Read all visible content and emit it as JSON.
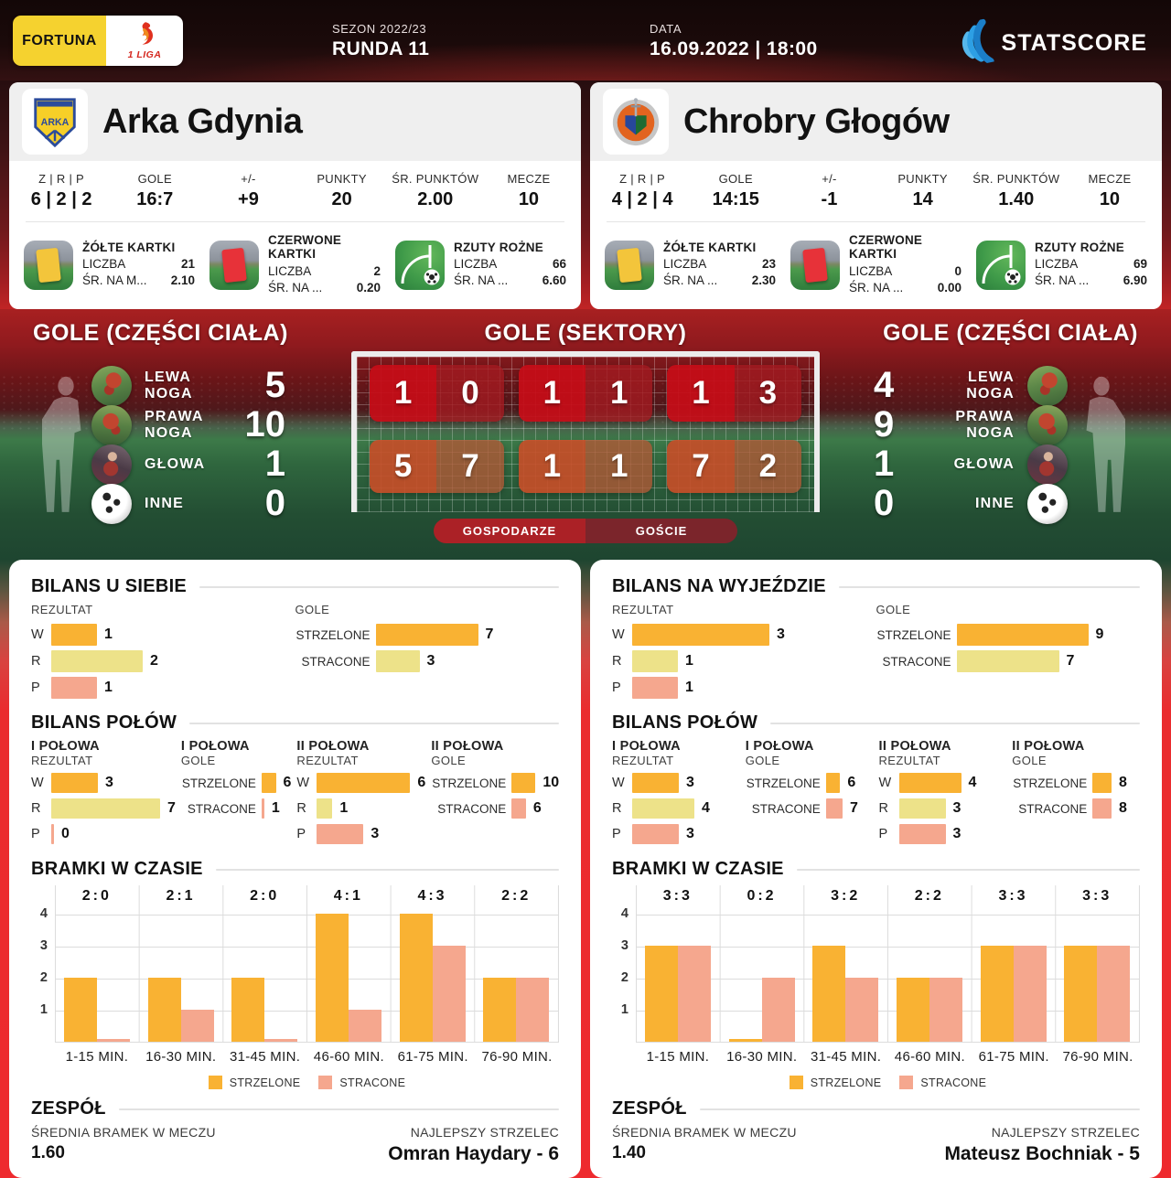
{
  "header": {
    "fortuna_label": "FORTUNA",
    "liga_label": "1 LIGA",
    "season_label": "SEZON 2022/23",
    "round": "RUNDA 11",
    "date_label": "DATA",
    "datetime": "16.09.2022 | 18:00",
    "brand": "STATSCORE"
  },
  "teams": [
    {
      "name": "Arka Gdynia",
      "stats": [
        {
          "label": "Z | R | P",
          "value": "6 | 2 | 2"
        },
        {
          "label": "GOLE",
          "value": "16:7"
        },
        {
          "label": "+/-",
          "value": "+9"
        },
        {
          "label": "PUNKTY",
          "value": "20"
        },
        {
          "label": "ŚR. PUNKTÓW",
          "value": "2.00"
        },
        {
          "label": "MECZE",
          "value": "10"
        }
      ],
      "cards": [
        {
          "icon": "yellow-card-icon",
          "title": "ŻÓŁTE KARTKI",
          "rows": [
            {
              "label": "LICZBA",
              "value": "21"
            },
            {
              "label": "ŚR. NA M...",
              "value": "2.10"
            }
          ]
        },
        {
          "icon": "red-card-icon",
          "title": "CZERWONE KARTKI",
          "rows": [
            {
              "label": "LICZBA",
              "value": "2"
            },
            {
              "label": "ŚR. NA ...",
              "value": "0.20"
            }
          ]
        },
        {
          "icon": "corner-icon",
          "title": "RZUTY ROŻNE",
          "rows": [
            {
              "label": "LICZBA",
              "value": "66"
            },
            {
              "label": "ŚR. NA ...",
              "value": "6.60"
            }
          ]
        }
      ]
    },
    {
      "name": "Chrobry Głogów",
      "stats": [
        {
          "label": "Z | R | P",
          "value": "4 | 2 | 4"
        },
        {
          "label": "GOLE",
          "value": "14:15"
        },
        {
          "label": "+/-",
          "value": "-1"
        },
        {
          "label": "PUNKTY",
          "value": "14"
        },
        {
          "label": "ŚR. PUNKTÓW",
          "value": "1.40"
        },
        {
          "label": "MECZE",
          "value": "10"
        }
      ],
      "cards": [
        {
          "icon": "yellow-card-icon",
          "title": "ŻÓŁTE KARTKI",
          "rows": [
            {
              "label": "LICZBA",
              "value": "23"
            },
            {
              "label": "ŚR. NA ...",
              "value": "2.30"
            }
          ]
        },
        {
          "icon": "red-card-icon",
          "title": "CZERWONE KARTKI",
          "rows": [
            {
              "label": "LICZBA",
              "value": "0"
            },
            {
              "label": "ŚR. NA ...",
              "value": "0.00"
            }
          ]
        },
        {
          "icon": "corner-icon",
          "title": "RZUTY ROŻNE",
          "rows": [
            {
              "label": "LICZBA",
              "value": "69"
            },
            {
              "label": "ŚR. NA ...",
              "value": "6.90"
            }
          ]
        }
      ]
    }
  ],
  "body_parts": {
    "title_left": "GOLE (CZĘŚCI CIAŁA)",
    "title_right": "GOLE (CZĘŚCI CIAŁA)",
    "left": [
      {
        "label": "LEWA NOGA",
        "value": 5,
        "icon": "left-leg-icon"
      },
      {
        "label": "PRAWA NOGA",
        "value": 10,
        "icon": "right-leg-icon"
      },
      {
        "label": "GŁOWA",
        "value": 1,
        "icon": "head-icon"
      },
      {
        "label": "INNE",
        "value": 0,
        "icon": "ball-icon"
      }
    ],
    "right": [
      {
        "label": "LEWA NOGA",
        "value": 4,
        "icon": "left-leg-icon"
      },
      {
        "label": "PRAWA NOGA",
        "value": 9,
        "icon": "right-leg-icon"
      },
      {
        "label": "GŁOWA",
        "value": 1,
        "icon": "head-icon"
      },
      {
        "label": "INNE",
        "value": 0,
        "icon": "ball-icon"
      }
    ]
  },
  "sectors": {
    "title": "GOLE (SEKTORY)",
    "top": [
      {
        "home": 1,
        "away": 0
      },
      {
        "home": 1,
        "away": 1
      },
      {
        "home": 1,
        "away": 3
      }
    ],
    "bottom": [
      {
        "home": 5,
        "away": 7
      },
      {
        "home": 1,
        "away": 1
      },
      {
        "home": 7,
        "away": 2
      }
    ],
    "legend_home": "GOSPODARZE",
    "legend_away": "GOŚCIE"
  },
  "balance": {
    "left": {
      "title": "BILANS U SIEBIE",
      "rezultat_label": "REZULTAT",
      "gole_label": "GOLE",
      "rezultat": [
        {
          "label": "W",
          "value": 1,
          "color": "orange"
        },
        {
          "label": "R",
          "value": 2,
          "color": "yellow"
        },
        {
          "label": "P",
          "value": 1,
          "color": "salmon"
        }
      ],
      "gole": [
        {
          "label": "STRZELONE",
          "value": 7,
          "color": "orange"
        },
        {
          "label": "STRACONE",
          "value": 3,
          "color": "yellow"
        }
      ],
      "halves_title": "BILANS POŁÓW",
      "halves": [
        {
          "title": "I POŁOWA",
          "sub": "REZULTAT",
          "rows": [
            {
              "label": "W",
              "value": 3,
              "color": "orange"
            },
            {
              "label": "R",
              "value": 7,
              "color": "yellow"
            },
            {
              "label": "P",
              "value": 0,
              "color": "salmon"
            }
          ]
        },
        {
          "title": "I POŁOWA",
          "sub": "GOLE",
          "rows": [
            {
              "label": "STRZELONE",
              "value": 6,
              "color": "orange"
            },
            {
              "label": "STRACONE",
              "value": 1,
              "color": "salmon"
            }
          ]
        },
        {
          "title": "II POŁOWA",
          "sub": "REZULTAT",
          "rows": [
            {
              "label": "W",
              "value": 6,
              "color": "orange"
            },
            {
              "label": "R",
              "value": 1,
              "color": "yellow"
            },
            {
              "label": "P",
              "value": 3,
              "color": "salmon"
            }
          ]
        },
        {
          "title": "II POŁOWA",
          "sub": "GOLE",
          "rows": [
            {
              "label": "STRZELONE",
              "value": 10,
              "color": "orange"
            },
            {
              "label": "STRACONE",
              "value": 6,
              "color": "salmon"
            }
          ]
        }
      ]
    },
    "right": {
      "title": "BILANS NA WYJEŹDZIE",
      "rezultat_label": "REZULTAT",
      "gole_label": "GOLE",
      "rezultat": [
        {
          "label": "W",
          "value": 3,
          "color": "orange"
        },
        {
          "label": "R",
          "value": 1,
          "color": "yellow"
        },
        {
          "label": "P",
          "value": 1,
          "color": "salmon"
        }
      ],
      "gole": [
        {
          "label": "STRZELONE",
          "value": 9,
          "color": "orange"
        },
        {
          "label": "STRACONE",
          "value": 7,
          "color": "yellow"
        }
      ],
      "halves_title": "BILANS POŁÓW",
      "halves": [
        {
          "title": "I POŁOWA",
          "sub": "REZULTAT",
          "rows": [
            {
              "label": "W",
              "value": 3,
              "color": "orange"
            },
            {
              "label": "R",
              "value": 4,
              "color": "yellow"
            },
            {
              "label": "P",
              "value": 3,
              "color": "salmon"
            }
          ]
        },
        {
          "title": "I POŁOWA",
          "sub": "GOLE",
          "rows": [
            {
              "label": "STRZELONE",
              "value": 6,
              "color": "orange"
            },
            {
              "label": "STRACONE",
              "value": 7,
              "color": "salmon"
            }
          ]
        },
        {
          "title": "II POŁOWA",
          "sub": "REZULTAT",
          "rows": [
            {
              "label": "W",
              "value": 4,
              "color": "orange"
            },
            {
              "label": "R",
              "value": 3,
              "color": "yellow"
            },
            {
              "label": "P",
              "value": 3,
              "color": "salmon"
            }
          ]
        },
        {
          "title": "II POŁOWA",
          "sub": "GOLE",
          "rows": [
            {
              "label": "STRZELONE",
              "value": 8,
              "color": "orange"
            },
            {
              "label": "STRACONE",
              "value": 8,
              "color": "salmon"
            }
          ]
        }
      ]
    }
  },
  "chart_data": [
    {
      "type": "bar",
      "title": "BRAMKI W CZASIE",
      "categories": [
        "1-15 MIN.",
        "16-30 MIN.",
        "31-45 MIN.",
        "46-60 MIN.",
        "61-75 MIN.",
        "76-90 MIN."
      ],
      "scores": [
        "2:0",
        "2:1",
        "2:0",
        "4:1",
        "4:3",
        "2:2"
      ],
      "series": [
        {
          "name": "STRZELONE",
          "values": [
            2,
            2,
            2,
            4,
            4,
            2
          ]
        },
        {
          "name": "STRACONE",
          "values": [
            0,
            1,
            0,
            1,
            3,
            2
          ]
        }
      ],
      "xlabel": "",
      "ylabel": "",
      "ylim": [
        0,
        4
      ],
      "yticks": [
        1,
        2,
        3,
        4
      ],
      "grid": true,
      "legend_position": "bottom"
    },
    {
      "type": "bar",
      "title": "BRAMKI W CZASIE",
      "categories": [
        "1-15 MIN.",
        "16-30 MIN.",
        "31-45 MIN.",
        "46-60 MIN.",
        "61-75 MIN.",
        "76-90 MIN."
      ],
      "scores": [
        "3:3",
        "0:2",
        "3:2",
        "2:2",
        "3:3",
        "3:3"
      ],
      "series": [
        {
          "name": "STRZELONE",
          "values": [
            3,
            0,
            3,
            2,
            3,
            3
          ]
        },
        {
          "name": "STRACONE",
          "values": [
            3,
            2,
            2,
            2,
            3,
            3
          ]
        }
      ],
      "xlabel": "",
      "ylabel": "",
      "ylim": [
        0,
        4
      ],
      "yticks": [
        1,
        2,
        3,
        4
      ],
      "grid": true,
      "legend_position": "bottom"
    }
  ],
  "team_summary": {
    "left": {
      "title": "ZESPÓŁ",
      "avg_label": "ŚREDNIA BRAMEK W MECZU",
      "avg": "1.60",
      "scorer_label": "NAJLEPSZY STRZELEC",
      "scorer": "Omran Haydary - 6"
    },
    "right": {
      "title": "ZESPÓŁ",
      "avg_label": "ŚREDNIA BRAMEK W MECZU",
      "avg": "1.40",
      "scorer_label": "NAJLEPSZY STRZELEC",
      "scorer": "Mateusz Bochniak - 5"
    }
  },
  "colors": {
    "strzelone_orange": "#F9B233",
    "remis_yellow": "#EDE289",
    "stracone_salmon": "#F5A78E",
    "home_red": "#AB2126",
    "away_red": "#7B252B",
    "background_red": "#EE2A2E"
  }
}
